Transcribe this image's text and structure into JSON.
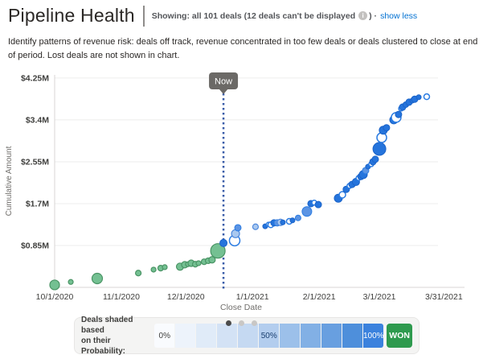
{
  "header": {
    "title": "Pipeline Health",
    "showing_prefix": "Showing: all 101 deals (12 deals can't be displayed",
    "showing_suffix": ") ·",
    "show_link": "show less",
    "info_glyph": "i"
  },
  "description": "Identify patterns of revenue risk: deals off track, revenue concentrated in too few deals or deals clustered to close at end of period. Lost deals are not shown in chart.",
  "chart_data": {
    "type": "scatter",
    "title": "Pipeline Health",
    "xlabel": "Close Date",
    "ylabel": "Cumulative Amount",
    "x_unit": "days since 10/1/2020",
    "y_unit": "cumulative amount in $M",
    "xlim": [
      0,
      182
    ],
    "ylim": [
      0,
      4.4
    ],
    "grid": "horizontal",
    "x_ticks": [
      {
        "label": "10/1/2020",
        "day": 0
      },
      {
        "label": "11/1/2020",
        "day": 31
      },
      {
        "label": "12/1/2020",
        "day": 61
      },
      {
        "label": "1/1/2021",
        "day": 92
      },
      {
        "label": "2/1/2021",
        "day": 123
      },
      {
        "label": "3/1/2021",
        "day": 151
      },
      {
        "label": "3/31/2021",
        "day": 181
      }
    ],
    "y_ticks": [
      {
        "label": "$0.85M",
        "value": 0.85
      },
      {
        "label": "$1.7M",
        "value": 1.7
      },
      {
        "label": "$2.55M",
        "value": 2.55
      },
      {
        "label": "$3.4M",
        "value": 3.4
      },
      {
        "label": "$4.25M",
        "value": 4.25
      }
    ],
    "now_marker": {
      "label": "Now",
      "day": 78.5
    },
    "point_styles": {
      "g": {
        "name": "closed-deal-green",
        "fill": "#74c092",
        "stroke": "#4a9465",
        "stroke_width": 1.2
      },
      "k": {
        "name": "high-probability-blue",
        "fill": "#2574dc",
        "stroke": "#1b63c8",
        "stroke_width": 1
      },
      "m": {
        "name": "mid-probability-blue",
        "fill": "#5b94e4",
        "stroke": "#2b7ce2",
        "stroke_width": 1
      },
      "l": {
        "name": "low-probability-light-blue",
        "fill": "#a9c8ef",
        "stroke": "#4d88dd",
        "stroke_width": 1.2
      },
      "o": {
        "name": "open-circle-deal",
        "fill": "#ffffff",
        "stroke": "#2b7ce2",
        "stroke_width": 1.5
      }
    },
    "points": [
      {
        "day": 0.0,
        "value": 0.05,
        "r": 6.0,
        "style": "g"
      },
      {
        "day": 7.5,
        "value": 0.11,
        "r": 3.0,
        "style": "g"
      },
      {
        "day": 19.8,
        "value": 0.18,
        "r": 6.5,
        "style": "g"
      },
      {
        "day": 38.9,
        "value": 0.29,
        "r": 3.5,
        "style": "g"
      },
      {
        "day": 46.0,
        "value": 0.36,
        "r": 3.0,
        "style": "g"
      },
      {
        "day": 49.3,
        "value": 0.39,
        "r": 3.5,
        "style": "g"
      },
      {
        "day": 51.2,
        "value": 0.41,
        "r": 3.0,
        "style": "g"
      },
      {
        "day": 58.3,
        "value": 0.42,
        "r": 4.5,
        "style": "g"
      },
      {
        "day": 60.5,
        "value": 0.46,
        "r": 4.0,
        "style": "g"
      },
      {
        "day": 62.0,
        "value": 0.47,
        "r": 3.0,
        "style": "g"
      },
      {
        "day": 63.5,
        "value": 0.49,
        "r": 4.0,
        "style": "g"
      },
      {
        "day": 65.4,
        "value": 0.47,
        "r": 3.5,
        "style": "g"
      },
      {
        "day": 66.9,
        "value": 0.49,
        "r": 3.0,
        "style": "g"
      },
      {
        "day": 69.5,
        "value": 0.52,
        "r": 3.5,
        "style": "g"
      },
      {
        "day": 71.4,
        "value": 0.54,
        "r": 3.5,
        "style": "g"
      },
      {
        "day": 73.2,
        "value": 0.56,
        "r": 4.0,
        "style": "g"
      },
      {
        "day": 75.9,
        "value": 0.74,
        "r": 9.0,
        "style": "g"
      },
      {
        "day": 78.5,
        "value": 0.9,
        "r": 4.5,
        "style": "k"
      },
      {
        "day": 83.7,
        "value": 0.95,
        "r": 6.5,
        "style": "o"
      },
      {
        "day": 84.1,
        "value": 1.09,
        "r": 5.0,
        "style": "l"
      },
      {
        "day": 85.2,
        "value": 1.21,
        "r": 4.0,
        "style": "m"
      },
      {
        "day": 93.4,
        "value": 1.23,
        "r": 3.5,
        "style": "l"
      },
      {
        "day": 97.9,
        "value": 1.24,
        "r": 3.0,
        "style": "k"
      },
      {
        "day": 99.4,
        "value": 1.28,
        "r": 2.5,
        "style": "o"
      },
      {
        "day": 100.5,
        "value": 1.27,
        "r": 3.5,
        "style": "o"
      },
      {
        "day": 102.0,
        "value": 1.31,
        "r": 4.0,
        "style": "k"
      },
      {
        "day": 103.5,
        "value": 1.31,
        "r": 4.0,
        "style": "m"
      },
      {
        "day": 105.0,
        "value": 1.32,
        "r": 4.0,
        "style": "l"
      },
      {
        "day": 106.1,
        "value": 1.32,
        "r": 3.0,
        "style": "k"
      },
      {
        "day": 109.1,
        "value": 1.34,
        "r": 3.5,
        "style": "o"
      },
      {
        "day": 110.6,
        "value": 1.36,
        "r": 3.0,
        "style": "k"
      },
      {
        "day": 113.2,
        "value": 1.41,
        "r": 3.5,
        "style": "m"
      },
      {
        "day": 117.3,
        "value": 1.54,
        "r": 6.0,
        "style": "m"
      },
      {
        "day": 119.2,
        "value": 1.7,
        "r": 4.0,
        "style": "k"
      },
      {
        "day": 120.7,
        "value": 1.72,
        "r": 3.0,
        "style": "o"
      },
      {
        "day": 122.6,
        "value": 1.68,
        "r": 4.0,
        "style": "k"
      },
      {
        "day": 131.9,
        "value": 1.81,
        "r": 5.0,
        "style": "k"
      },
      {
        "day": 133.8,
        "value": 1.88,
        "r": 4.0,
        "style": "o"
      },
      {
        "day": 135.6,
        "value": 1.99,
        "r": 4.0,
        "style": "k"
      },
      {
        "day": 137.1,
        "value": 2.06,
        "r": 3.0,
        "style": "o"
      },
      {
        "day": 138.3,
        "value": 2.09,
        "r": 4.0,
        "style": "k"
      },
      {
        "day": 140.1,
        "value": 2.14,
        "r": 4.5,
        "style": "k"
      },
      {
        "day": 141.3,
        "value": 2.22,
        "r": 3.0,
        "style": "o"
      },
      {
        "day": 142.4,
        "value": 2.25,
        "r": 4.0,
        "style": "k"
      },
      {
        "day": 143.5,
        "value": 2.29,
        "r": 5.0,
        "style": "k"
      },
      {
        "day": 144.6,
        "value": 2.37,
        "r": 4.0,
        "style": "m"
      },
      {
        "day": 145.7,
        "value": 2.45,
        "r": 3.0,
        "style": "k"
      },
      {
        "day": 147.2,
        "value": 2.5,
        "r": 3.0,
        "style": "o"
      },
      {
        "day": 148.0,
        "value": 2.55,
        "r": 4.0,
        "style": "k"
      },
      {
        "day": 149.1,
        "value": 2.6,
        "r": 4.0,
        "style": "k"
      },
      {
        "day": 151.0,
        "value": 2.81,
        "r": 8.0,
        "style": "k"
      },
      {
        "day": 152.1,
        "value": 3.04,
        "r": 6.0,
        "style": "o"
      },
      {
        "day": 152.8,
        "value": 3.19,
        "r": 5.0,
        "style": "k"
      },
      {
        "day": 154.3,
        "value": 3.24,
        "r": 4.0,
        "style": "k"
      },
      {
        "day": 157.7,
        "value": 3.4,
        "r": 5.0,
        "style": "k"
      },
      {
        "day": 158.8,
        "value": 3.45,
        "r": 6.0,
        "style": "o"
      },
      {
        "day": 159.9,
        "value": 3.51,
        "r": 4.0,
        "style": "k"
      },
      {
        "day": 161.1,
        "value": 3.63,
        "r": 3.0,
        "style": "o"
      },
      {
        "day": 161.8,
        "value": 3.66,
        "r": 4.0,
        "style": "k"
      },
      {
        "day": 163.3,
        "value": 3.71,
        "r": 3.5,
        "style": "k"
      },
      {
        "day": 164.8,
        "value": 3.76,
        "r": 4.0,
        "style": "k"
      },
      {
        "day": 166.3,
        "value": 3.79,
        "r": 3.0,
        "style": "k"
      },
      {
        "day": 167.4,
        "value": 3.82,
        "r": 4.0,
        "style": "k"
      },
      {
        "day": 169.3,
        "value": 3.86,
        "r": 3.0,
        "style": "k"
      },
      {
        "day": 173.0,
        "value": 3.87,
        "r": 3.5,
        "style": "o"
      }
    ]
  },
  "legend": {
    "label_line1": "Deals shaded based",
    "label_line2": "on their Probability:",
    "segments": [
      {
        "color": "#f9fbfe",
        "label": "0%",
        "label_color": "#3e3e3c"
      },
      {
        "color": "#edf3fb",
        "label": "",
        "label_color": ""
      },
      {
        "color": "#e0ebf8",
        "label": "",
        "label_color": ""
      },
      {
        "color": "#d3e2f5",
        "label": "",
        "label_color": ""
      },
      {
        "color": "#c5d9f2",
        "label": "",
        "label_color": ""
      },
      {
        "color": "#b3cdee",
        "label": "50%",
        "label_color": "#1a3f6f"
      },
      {
        "color": "#9cc0ea",
        "label": "",
        "label_color": ""
      },
      {
        "color": "#82b0e5",
        "label": "",
        "label_color": ""
      },
      {
        "color": "#689fe0",
        "label": "",
        "label_color": ""
      },
      {
        "color": "#4e8fdb",
        "label": "",
        "label_color": ""
      },
      {
        "color": "#3b82dd",
        "label": "100%",
        "label_color": "#ffffff"
      }
    ],
    "won": {
      "label": "WON",
      "color": "#2e9a4e",
      "text_color": "#ffffff"
    },
    "pager_dots": [
      {
        "state": "active",
        "color": "#4b4b4b"
      },
      {
        "state": "inactive",
        "color": "#c9c7c5"
      },
      {
        "state": "inactive",
        "color": "#c9c7c5"
      }
    ]
  }
}
